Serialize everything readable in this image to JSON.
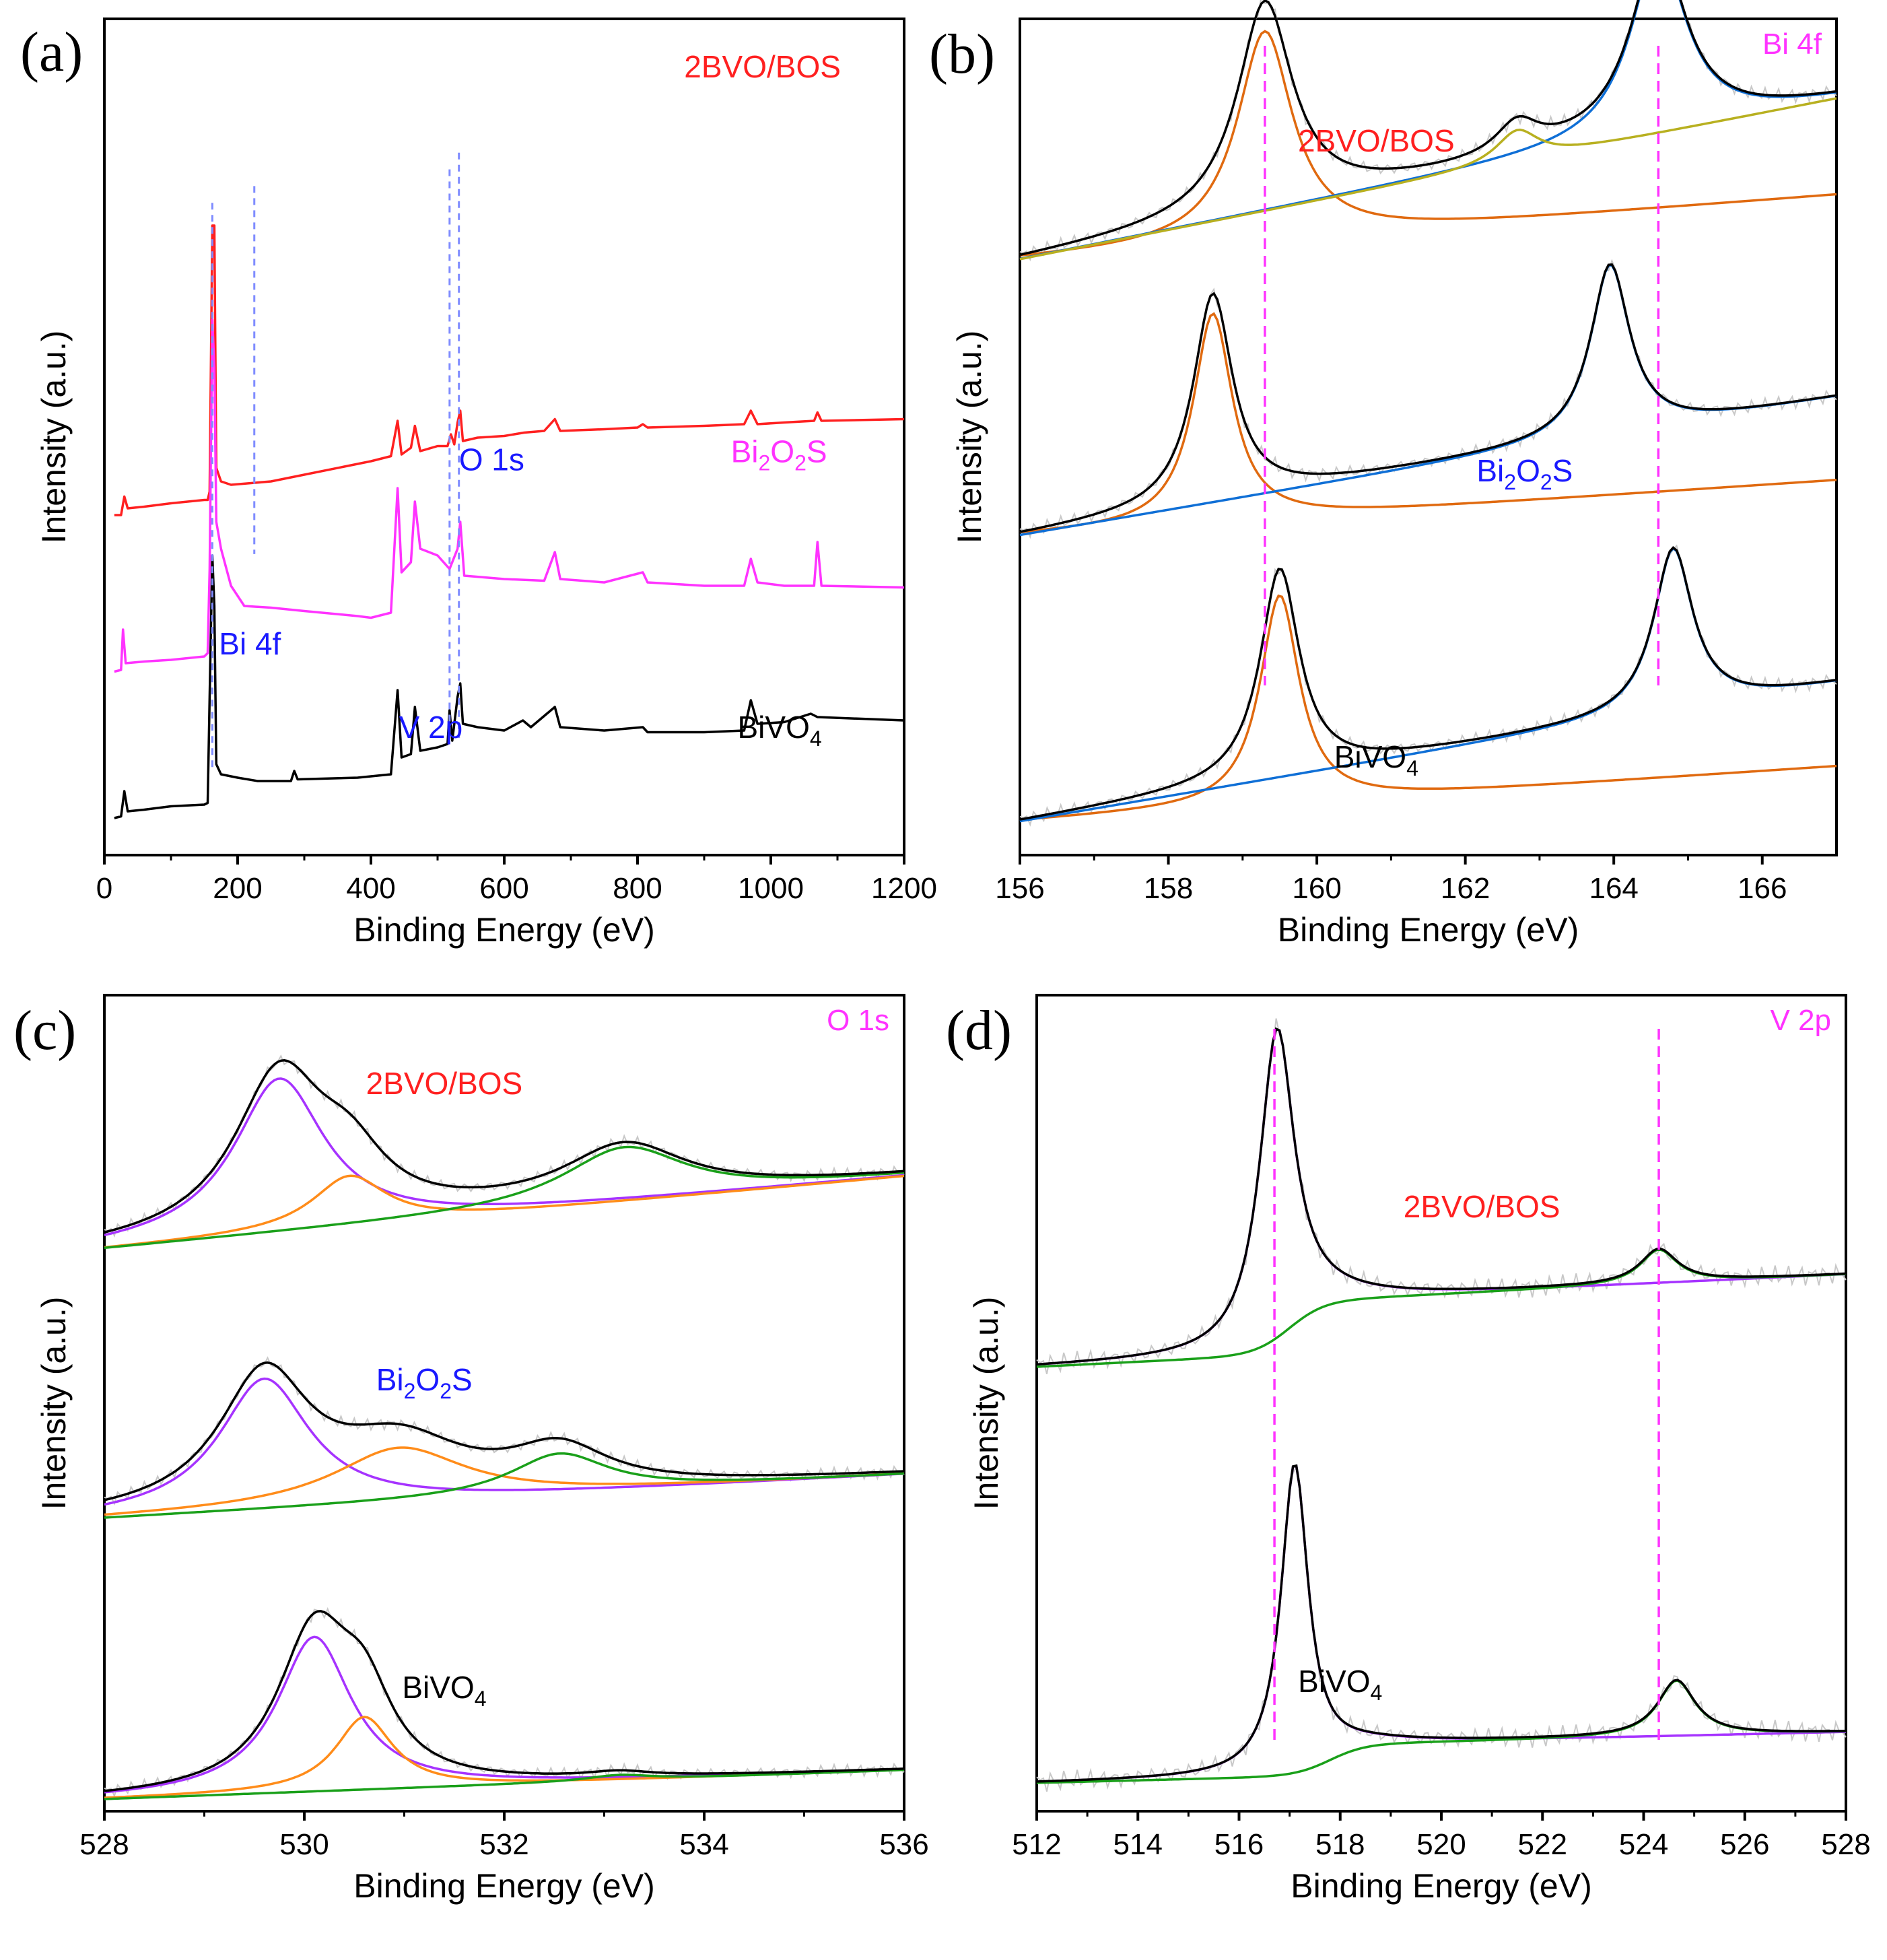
{
  "colors": {
    "red": "#ff2020",
    "magenta": "#ff33ff",
    "black": "#000000",
    "blue": "#1a1aff",
    "orange": "#ff8c1a",
    "skyblue": "#1a8cff",
    "olive": "#b8b020",
    "purple": "#a633ff",
    "green": "#1aa01a",
    "dash_blue": "#7f8cff",
    "dash_magenta": "#ff33ff",
    "fit_orange_strong": "#e06a10",
    "fit_blue_strong": "#0f6fd6"
  },
  "chart_data": [
    {
      "panel": "(a)",
      "type": "line",
      "title": "",
      "xlabel": "Binding Energy (eV)",
      "ylabel": "Intensity (a.u.)",
      "xlim": [
        0,
        1200
      ],
      "x_ticks": [
        "0",
        "200",
        "400",
        "600",
        "800",
        "1000",
        "1200"
      ],
      "series": [
        {
          "name": "2BVO/BOS",
          "color": "red",
          "baseline": 8.2,
          "points": [
            [
              15,
              1.0
            ],
            [
              25,
              1.0
            ],
            [
              30,
              1.55
            ],
            [
              35,
              1.2
            ],
            [
              60,
              1.25
            ],
            [
              100,
              1.35
            ],
            [
              150,
              1.45
            ],
            [
              155,
              1.45
            ],
            [
              158,
              1.7
            ],
            [
              162,
              9.6
            ],
            [
              165,
              9.6
            ],
            [
              168,
              2.4
            ],
            [
              175,
              2.0
            ],
            [
              190,
              1.9
            ],
            [
              250,
              2.0
            ],
            [
              300,
              2.2
            ],
            [
              400,
              2.6
            ],
            [
              430,
              2.75
            ],
            [
              440,
              3.8
            ],
            [
              446,
              2.8
            ],
            [
              460,
              3.0
            ],
            [
              466,
              3.65
            ],
            [
              474,
              2.9
            ],
            [
              500,
              3.05
            ],
            [
              515,
              3.05
            ],
            [
              520,
              3.4
            ],
            [
              525,
              3.1
            ],
            [
              530,
              3.75
            ],
            [
              534,
              4.1
            ],
            [
              538,
              3.2
            ],
            [
              560,
              3.3
            ],
            [
              600,
              3.35
            ],
            [
              630,
              3.45
            ],
            [
              660,
              3.5
            ],
            [
              676,
              3.85
            ],
            [
              684,
              3.5
            ],
            [
              750,
              3.55
            ],
            [
              800,
              3.6
            ],
            [
              808,
              3.7
            ],
            [
              815,
              3.6
            ],
            [
              900,
              3.65
            ],
            [
              960,
              3.7
            ],
            [
              970,
              4.1
            ],
            [
              980,
              3.7
            ],
            [
              1020,
              3.75
            ],
            [
              1065,
              3.8
            ],
            [
              1070,
              4.05
            ],
            [
              1076,
              3.8
            ],
            [
              1200,
              3.85
            ]
          ]
        },
        {
          "name": "Bi2O2S",
          "color": "magenta",
          "baseline": 4.0,
          "points": [
            [
              15,
              0.55
            ],
            [
              25,
              0.6
            ],
            [
              28,
              1.8
            ],
            [
              32,
              0.8
            ],
            [
              60,
              0.85
            ],
            [
              100,
              0.9
            ],
            [
              150,
              1.0
            ],
            [
              155,
              1.1
            ],
            [
              158,
              3.6
            ],
            [
              162,
              11.0
            ],
            [
              165,
              9.6
            ],
            [
              168,
              5.0
            ],
            [
              175,
              4.2
            ],
            [
              190,
              3.1
            ],
            [
              210,
              2.5
            ],
            [
              250,
              2.45
            ],
            [
              300,
              2.35
            ],
            [
              380,
              2.2
            ],
            [
              400,
              2.15
            ],
            [
              430,
              2.3
            ],
            [
              440,
              6.0
            ],
            [
              446,
              3.5
            ],
            [
              460,
              3.8
            ],
            [
              466,
              5.6
            ],
            [
              474,
              4.2
            ],
            [
              500,
              4.0
            ],
            [
              518,
              3.6
            ],
            [
              530,
              4.2
            ],
            [
              534,
              5.0
            ],
            [
              540,
              3.4
            ],
            [
              600,
              3.3
            ],
            [
              660,
              3.25
            ],
            [
              676,
              4.1
            ],
            [
              684,
              3.3
            ],
            [
              750,
              3.2
            ],
            [
              808,
              3.5
            ],
            [
              815,
              3.2
            ],
            [
              900,
              3.1
            ],
            [
              960,
              3.1
            ],
            [
              970,
              3.9
            ],
            [
              980,
              3.2
            ],
            [
              1020,
              3.1
            ],
            [
              1065,
              3.1
            ],
            [
              1070,
              4.4
            ],
            [
              1076,
              3.1
            ],
            [
              1200,
              3.05
            ]
          ]
        },
        {
          "name": "BiVO4",
          "color": "black",
          "baseline": 0.0,
          "points": [
            [
              15,
              0.2
            ],
            [
              25,
              0.25
            ],
            [
              30,
              1.0
            ],
            [
              35,
              0.4
            ],
            [
              60,
              0.45
            ],
            [
              100,
              0.55
            ],
            [
              150,
              0.6
            ],
            [
              155,
              0.65
            ],
            [
              158,
              3.8
            ],
            [
              162,
              8.0
            ],
            [
              165,
              6.5
            ],
            [
              168,
              1.8
            ],
            [
              175,
              1.5
            ],
            [
              200,
              1.4
            ],
            [
              230,
              1.3
            ],
            [
              280,
              1.3
            ],
            [
              285,
              1.6
            ],
            [
              290,
              1.35
            ],
            [
              380,
              1.4
            ],
            [
              430,
              1.5
            ],
            [
              440,
              4.0
            ],
            [
              446,
              2.0
            ],
            [
              460,
              2.1
            ],
            [
              466,
              3.5
            ],
            [
              474,
              2.2
            ],
            [
              500,
              2.3
            ],
            [
              515,
              2.4
            ],
            [
              518,
              3.4
            ],
            [
              522,
              2.5
            ],
            [
              530,
              3.8
            ],
            [
              534,
              4.2
            ],
            [
              538,
              3.0
            ],
            [
              560,
              2.9
            ],
            [
              600,
              2.8
            ],
            [
              628,
              3.1
            ],
            [
              640,
              2.9
            ],
            [
              676,
              3.5
            ],
            [
              684,
              2.9
            ],
            [
              750,
              2.8
            ],
            [
              808,
              2.9
            ],
            [
              815,
              2.75
            ],
            [
              900,
              2.75
            ],
            [
              960,
              2.8
            ],
            [
              970,
              3.7
            ],
            [
              980,
              3.0
            ],
            [
              1020,
              3.05
            ],
            [
              1060,
              3.3
            ],
            [
              1070,
              3.2
            ],
            [
              1200,
              3.1
            ]
          ]
        }
      ],
      "vlines": [
        {
          "x": 162,
          "color": "dash_blue",
          "from": 0.78,
          "to": 0.1
        },
        {
          "x": 225,
          "color": "dash_blue",
          "from": 0.8,
          "to": 0.36
        },
        {
          "x": 518,
          "color": "dash_blue",
          "from": 0.82,
          "to": 0.14
        },
        {
          "x": 532,
          "color": "dash_blue",
          "from": 0.84,
          "to": 0.14
        }
      ],
      "peak_labels": [
        {
          "text": "Bi 4f",
          "color": "blue",
          "x": 170,
          "y": 0.24
        },
        {
          "text": "V 2p",
          "color": "blue",
          "x": 440,
          "y": 0.14
        },
        {
          "text": "O 1s",
          "color": "blue",
          "x": 530,
          "y": 0.46
        }
      ],
      "series_labels": [
        {
          "text": "2BVO/BOS",
          "color": "red",
          "x": 870,
          "y": 0.93
        },
        {
          "text": "Bi",
          "sub1": "2",
          "mid": "O",
          "sub2": "2",
          "end": "S",
          "color": "magenta",
          "x": 940,
          "y": 0.47
        },
        {
          "text": "BiVO",
          "sub1": "4",
          "color": "black",
          "x": 950,
          "y": 0.14
        }
      ]
    },
    {
      "panel": "(b)",
      "type": "line",
      "corner_label": "Bi 4f",
      "xlabel": "Binding Energy (eV)",
      "ylabel": "Intensity (a.u.)",
      "xlim": [
        156,
        167
      ],
      "x_ticks": [
        "156",
        "158",
        "160",
        "162",
        "164",
        "166"
      ],
      "vlines_x": [
        159.3,
        164.6
      ],
      "stacks": [
        {
          "label": "2BVO/BOS",
          "label_color": "red",
          "offset": 2.35,
          "peaks": [
            [
              159.3,
              1.0,
              0.45
            ],
            [
              164.6,
              0.88,
              0.45
            ]
          ],
          "extra_peak": [
            162.7,
            0.15,
            0.35
          ],
          "bg_slope": 0.07
        },
        {
          "label_parts": [
            "Bi",
            "2",
            "O",
            "2",
            "S"
          ],
          "label_color": "blue",
          "offset": 1.15,
          "peaks": [
            [
              158.6,
              1.0,
              0.32
            ],
            [
              163.95,
              0.82,
              0.32
            ]
          ],
          "bg_slope": 0.06
        },
        {
          "label_parts": [
            "BiVO",
            "4"
          ],
          "label_color": "black",
          "offset": 0.0,
          "peaks": [
            [
              159.5,
              1.0,
              0.32
            ],
            [
              164.8,
              0.78,
              0.32
            ]
          ],
          "bg_slope": 0.06
        }
      ]
    },
    {
      "panel": "(c)",
      "type": "line",
      "corner_label": "O 1s",
      "xlabel": "Binding Energy (eV)",
      "ylabel": "Intensity (a.u.)",
      "xlim": [
        528,
        536
      ],
      "x_ticks": [
        "528",
        "530",
        "532",
        "534",
        "536"
      ],
      "stacks": [
        {
          "label": "2BVO/BOS",
          "label_color": "red",
          "offset": 2.4,
          "components": [
            [
              "purple",
              529.75,
              0.85,
              0.55
            ],
            [
              "orange",
              530.45,
              0.28,
              0.45
            ],
            [
              "green",
              533.2,
              0.3,
              0.75
            ]
          ],
          "bg_slope": 0.05
        },
        {
          "label_parts": [
            "Bi",
            "2",
            "O",
            "2",
            "S"
          ],
          "label_color": "blue",
          "offset": 1.2,
          "components": [
            [
              "purple",
              529.6,
              0.72,
              0.55
            ],
            [
              "orange",
              530.95,
              0.3,
              0.8
            ],
            [
              "green",
              532.55,
              0.22,
              0.6
            ]
          ],
          "bg_slope": 0.03
        },
        {
          "label_parts": [
            "BiVO",
            "4"
          ],
          "label_color": "black",
          "offset": 0.0,
          "components": [
            [
              "purple",
              530.1,
              0.85,
              0.45
            ],
            [
              "orange",
              530.6,
              0.4,
              0.35
            ],
            [
              "green",
              533.15,
              0.03,
              0.4
            ]
          ],
          "bg_slope": 0.02
        }
      ]
    },
    {
      "panel": "(d)",
      "type": "line",
      "corner_label": "V 2p",
      "xlabel": "Binding Energy (eV)",
      "ylabel": "Intensity (a.u.)",
      "xlim": [
        512,
        528
      ],
      "x_ticks": [
        "512",
        "514",
        "516",
        "518",
        "520",
        "522",
        "524",
        "526",
        "528"
      ],
      "vlines_x": [
        516.7,
        524.3
      ],
      "stacks": [
        {
          "label": "2BVO/BOS",
          "label_color": "red",
          "offset": 1.25,
          "components": [
            [
              "purple",
              516.75,
              1.0,
              0.42
            ],
            [
              "green",
              524.3,
              0.11,
              0.45
            ]
          ],
          "step": [
            517.0,
            0.17
          ],
          "bg_slope": 0.008
        },
        {
          "label_parts": [
            "BiVO",
            "4"
          ],
          "label_color": "black",
          "offset": 0.0,
          "components": [
            [
              "purple",
              517.1,
              1.0,
              0.33
            ],
            [
              "green",
              524.65,
              0.18,
              0.45
            ]
          ],
          "step": [
            517.8,
            0.1
          ],
          "bg_slope": 0.004
        }
      ]
    }
  ]
}
